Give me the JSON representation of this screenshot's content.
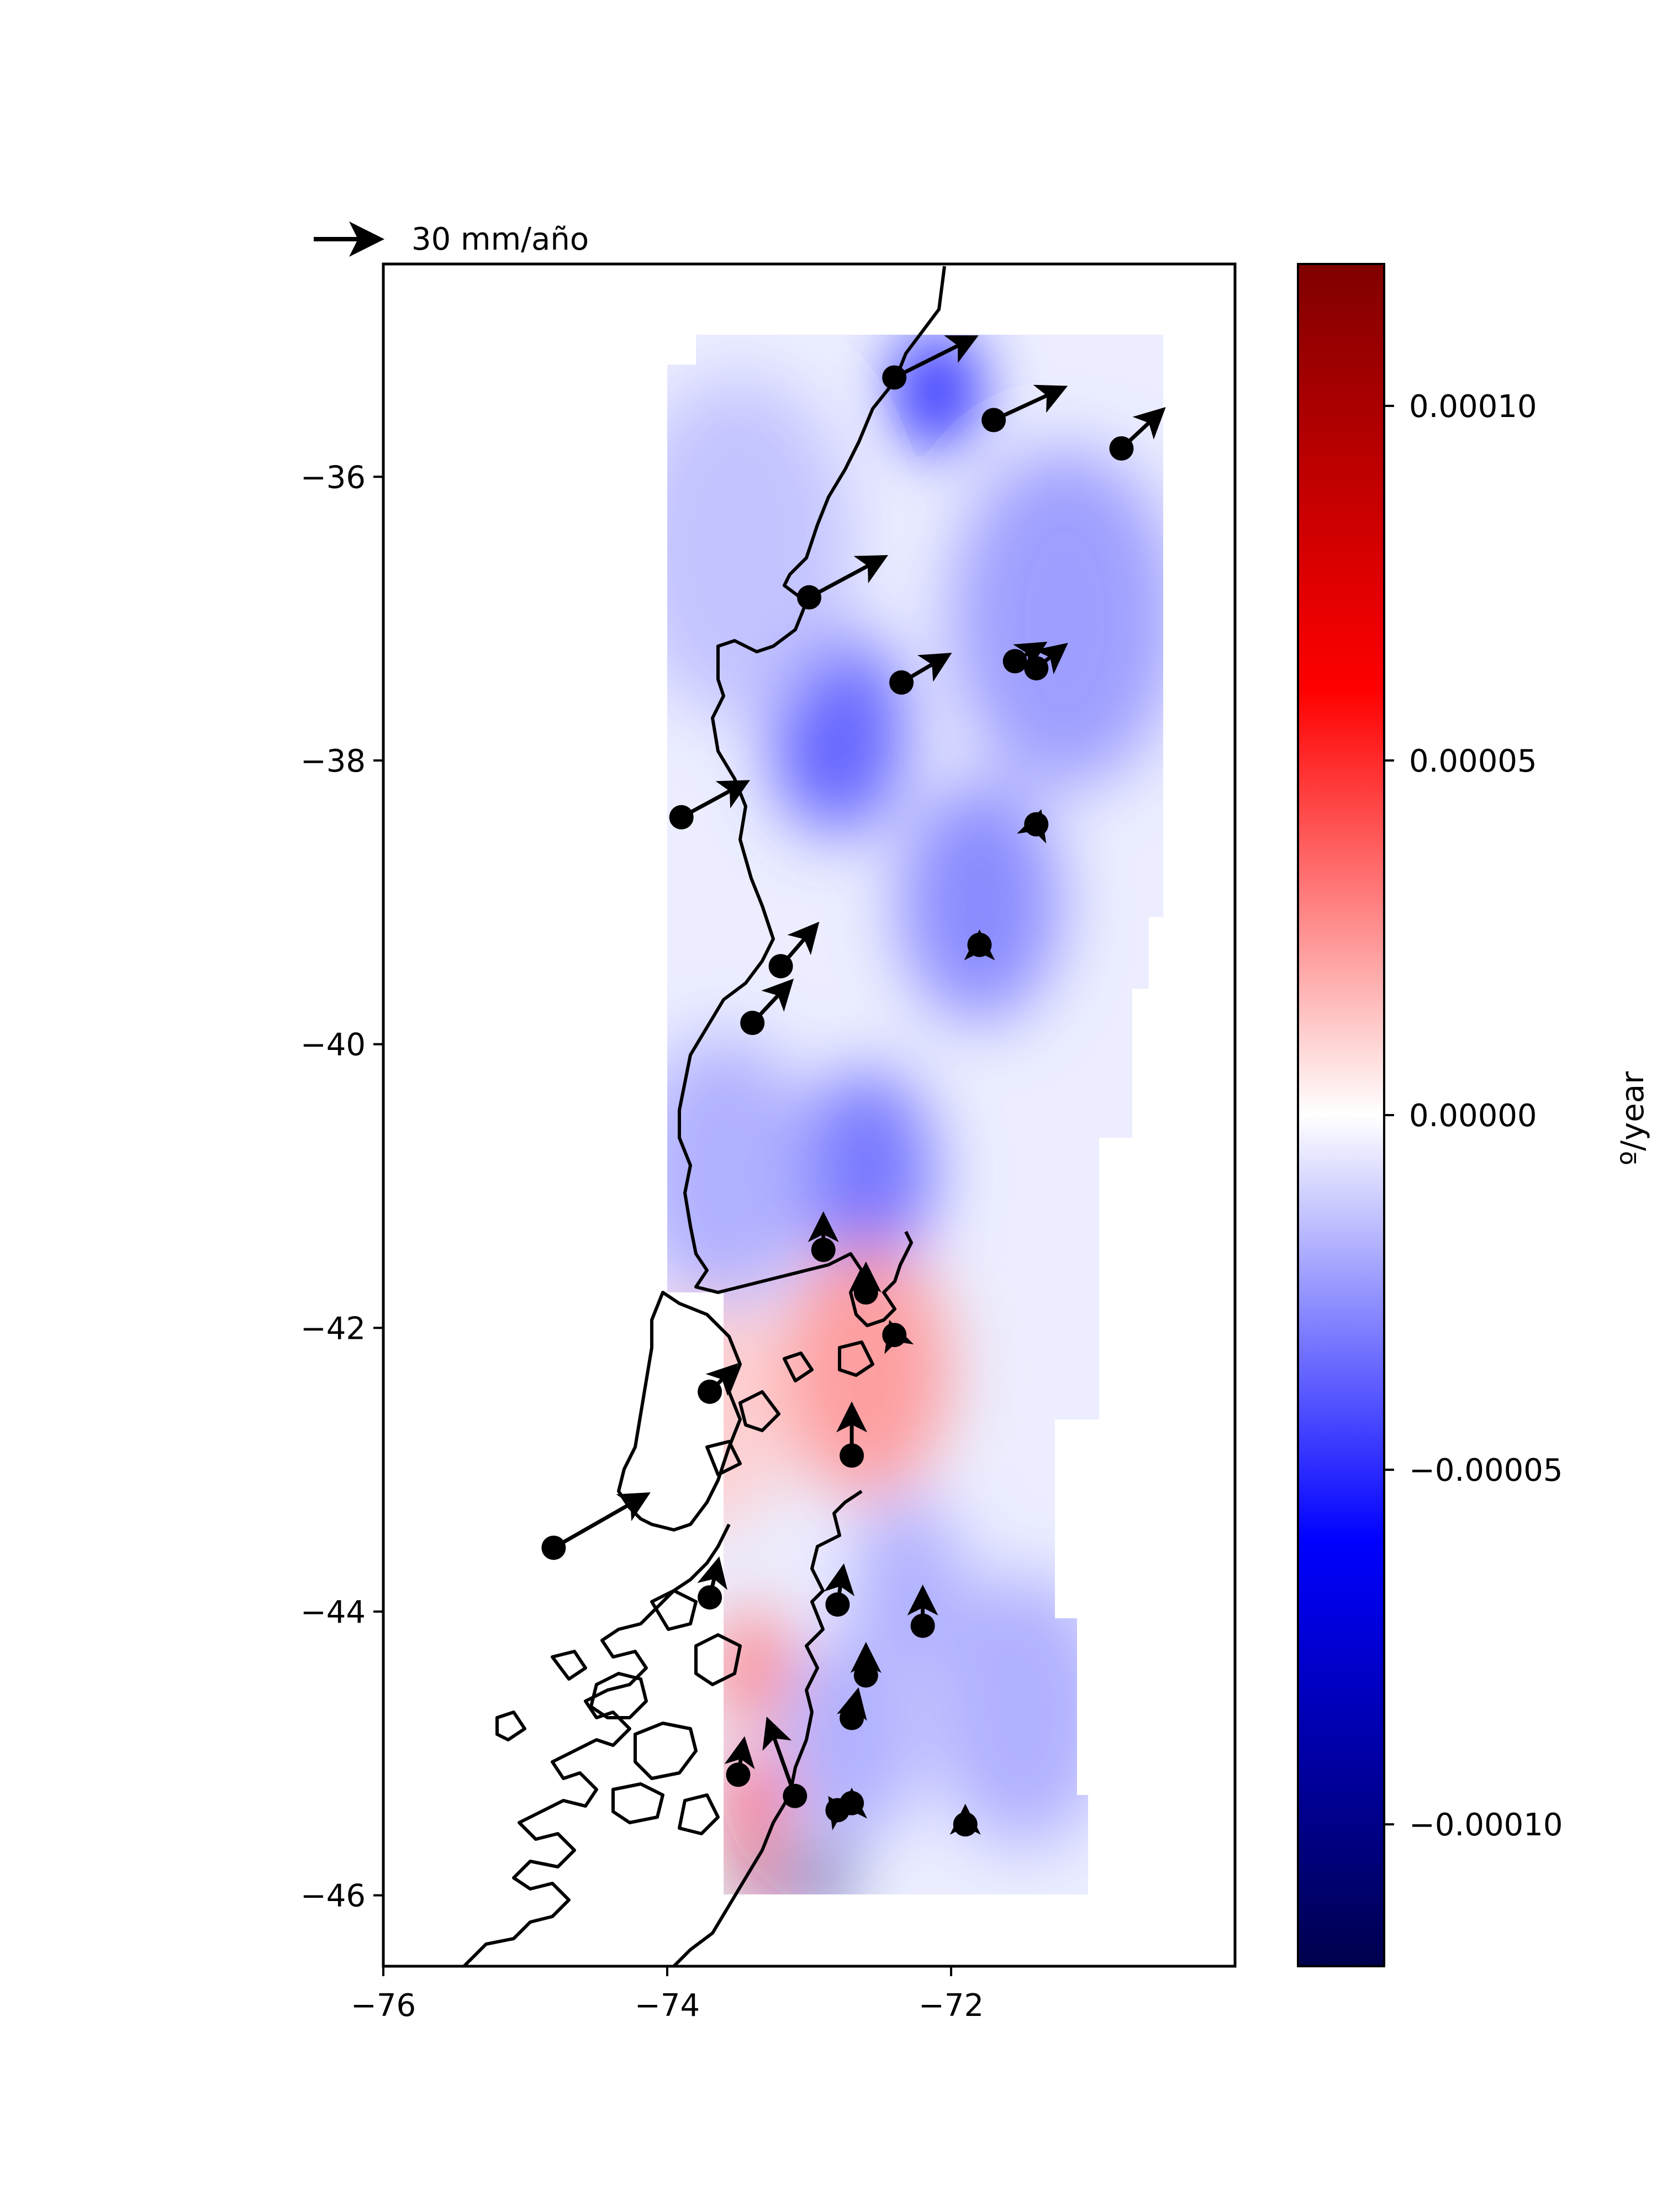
{
  "legend": {
    "arrow_label": "30 mm/año",
    "arrow_value_mm_yr": 30
  },
  "axes": {
    "x_range": [
      -76,
      -70
    ],
    "y_range": [
      -46.5,
      -34.5
    ],
    "x_ticks": [
      {
        "v": -76,
        "label": "−76"
      },
      {
        "v": -74,
        "label": "−74"
      },
      {
        "v": -72,
        "label": "−72"
      }
    ],
    "y_ticks": [
      {
        "v": -36,
        "label": "−36"
      },
      {
        "v": -38,
        "label": "−38"
      },
      {
        "v": -40,
        "label": "−40"
      },
      {
        "v": -42,
        "label": "−42"
      },
      {
        "v": -44,
        "label": "−44"
      },
      {
        "v": -46,
        "label": "−46"
      }
    ]
  },
  "colorbar": {
    "label": "º/year",
    "range": [
      -0.00012,
      0.00012
    ],
    "colormap": "seismic",
    "ticks": [
      {
        "v": 0.0001,
        "label": "0.00010"
      },
      {
        "v": 5e-05,
        "label": "0.00005"
      },
      {
        "v": 0.0,
        "label": "0.00000"
      },
      {
        "v": -5e-05,
        "label": "−0.00005"
      },
      {
        "v": -0.0001,
        "label": "−0.00010"
      }
    ]
  },
  "stations": [
    {
      "lon": -72.4,
      "lat": -35.3,
      "ve": 30,
      "vn": 15
    },
    {
      "lon": -71.7,
      "lat": -35.6,
      "ve": 26,
      "vn": 12
    },
    {
      "lon": -70.8,
      "lat": -35.8,
      "ve": 15,
      "vn": 14
    },
    {
      "lon": -73.0,
      "lat": -36.85,
      "ve": 28,
      "vn": 15
    },
    {
      "lon": -72.35,
      "lat": -37.45,
      "ve": 17,
      "vn": 10
    },
    {
      "lon": -71.55,
      "lat": -37.3,
      "ve": 10,
      "vn": 6
    },
    {
      "lon": -71.4,
      "lat": -37.35,
      "ve": 10,
      "vn": 8
    },
    {
      "lon": -71.4,
      "lat": -38.45,
      "ve": 1,
      "vn": 3
    },
    {
      "lon": -73.9,
      "lat": -38.4,
      "ve": 24,
      "vn": 13
    },
    {
      "lon": -73.2,
      "lat": -39.45,
      "ve": 13,
      "vn": 15
    },
    {
      "lon": -73.4,
      "lat": -39.85,
      "ve": 14,
      "vn": 15
    },
    {
      "lon": -71.8,
      "lat": -39.3,
      "ve": 0,
      "vn": 3
    },
    {
      "lon": -72.9,
      "lat": -41.45,
      "ve": 0,
      "vn": 12
    },
    {
      "lon": -72.6,
      "lat": -41.75,
      "ve": 0,
      "vn": 9
    },
    {
      "lon": -72.4,
      "lat": -42.05,
      "ve": -1,
      "vn": 3
    },
    {
      "lon": -73.7,
      "lat": -42.45,
      "ve": 9,
      "vn": 9
    },
    {
      "lon": -72.7,
      "lat": -42.9,
      "ve": 0,
      "vn": 18
    },
    {
      "lon": -74.8,
      "lat": -43.55,
      "ve": 35,
      "vn": 20
    },
    {
      "lon": -73.7,
      "lat": -43.9,
      "ve": 3,
      "vn": 13
    },
    {
      "lon": -72.8,
      "lat": -43.95,
      "ve": 2,
      "vn": 13
    },
    {
      "lon": -72.2,
      "lat": -44.1,
      "ve": 0,
      "vn": 13
    },
    {
      "lon": -72.6,
      "lat": -44.45,
      "ve": 0,
      "vn": 10
    },
    {
      "lon": -72.7,
      "lat": -44.75,
      "ve": 2,
      "vn": 9
    },
    {
      "lon": -73.5,
      "lat": -45.15,
      "ve": 2,
      "vn": 12
    },
    {
      "lon": -73.1,
      "lat": -45.3,
      "ve": -10,
      "vn": 28
    },
    {
      "lon": -72.8,
      "lat": -45.4,
      "ve": -2,
      "vn": 3
    },
    {
      "lon": -72.7,
      "lat": -45.35,
      "ve": 0,
      "vn": 3
    },
    {
      "lon": -71.9,
      "lat": -45.5,
      "ve": 0,
      "vn": 5
    }
  ],
  "strain_field": [
    {
      "lon": -72.1,
      "lat": -35.4,
      "value": -6e-05,
      "r": 0.35
    },
    {
      "lon": -72.8,
      "lat": -37.8,
      "value": -4e-05,
      "r": 0.6
    },
    {
      "lon": -71.8,
      "lat": -39.0,
      "value": -3e-05,
      "r": 0.7
    },
    {
      "lon": -71.2,
      "lat": -37.0,
      "value": -2.5e-05,
      "r": 1.0
    },
    {
      "lon": -73.5,
      "lat": -36.5,
      "value": -1.5e-05,
      "r": 1.0
    },
    {
      "lon": -72.6,
      "lat": -40.9,
      "value": -3.5e-05,
      "r": 0.6
    },
    {
      "lon": -73.6,
      "lat": -40.9,
      "value": -2e-05,
      "r": 0.8
    },
    {
      "lon": -72.6,
      "lat": -42.3,
      "value": 2.5e-05,
      "r": 0.75
    },
    {
      "lon": -73.7,
      "lat": -42.6,
      "value": 1.2e-05,
      "r": 0.7
    },
    {
      "lon": -72.3,
      "lat": -43.8,
      "value": -2e-05,
      "r": 0.5
    },
    {
      "lon": -71.5,
      "lat": -44.7,
      "value": -2e-05,
      "r": 0.8
    },
    {
      "lon": -72.7,
      "lat": -44.9,
      "value": -2e-05,
      "r": 0.6
    },
    {
      "lon": -73.35,
      "lat": -45.3,
      "value": 6e-05,
      "r": 0.25
    },
    {
      "lon": -73.4,
      "lat": -44.4,
      "value": 3e-05,
      "r": 0.35
    },
    {
      "lon": -73.35,
      "lat": -45.85,
      "value": 0.0001,
      "r": 0.18
    },
    {
      "lon": -72.9,
      "lat": -45.85,
      "value": -0.0001,
      "r": 0.2
    }
  ]
}
